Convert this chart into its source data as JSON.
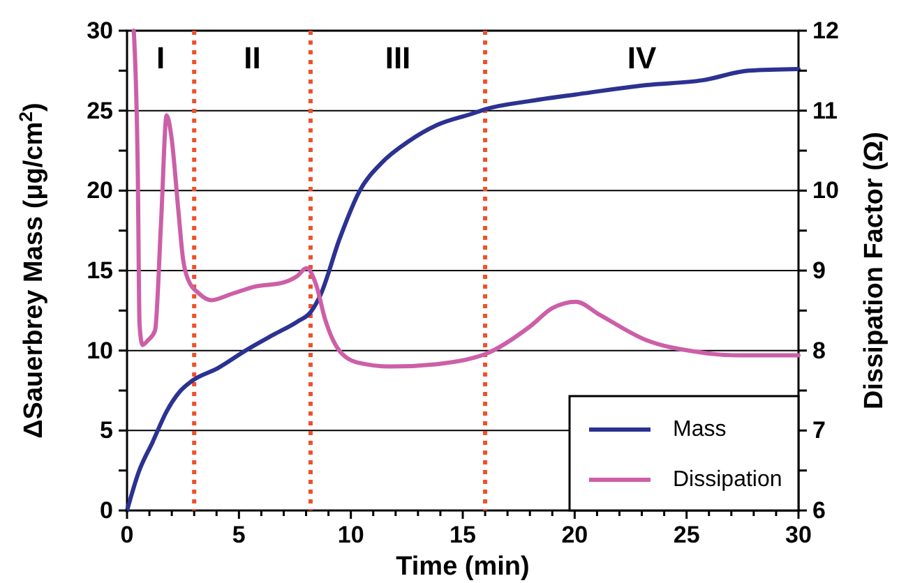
{
  "chart_data": {
    "type": "line",
    "xlabel": "Time (min)",
    "ylabel": "ΔSauerbrey Mass (μg/cm$^{2}$)",
    "y2label": "Dissipation Factor (Ω)",
    "xlim": [
      0,
      30
    ],
    "xticks": [
      0,
      {
        "value": 1,
        "label": null
      },
      {
        "value": 2,
        "label": null
      },
      {
        "value": 3,
        "label": null
      },
      {
        "value": 4,
        "label": null
      },
      5,
      {
        "value": 6,
        "label": null
      },
      {
        "value": 7,
        "label": null
      },
      {
        "value": 8,
        "label": null
      },
      {
        "value": 9,
        "label": null
      },
      10,
      {
        "value": 11,
        "label": null
      },
      {
        "value": 12,
        "label": null
      },
      {
        "value": 13,
        "label": null
      },
      {
        "value": 14,
        "label": null
      },
      15,
      {
        "value": 16,
        "label": null
      },
      {
        "value": 17,
        "label": null
      },
      {
        "value": 18,
        "label": null
      },
      {
        "value": 19,
        "label": null
      },
      20,
      {
        "value": 21,
        "label": null
      },
      {
        "value": 22,
        "label": null
      },
      {
        "value": 23,
        "label": null
      },
      {
        "value": 24,
        "label": null
      },
      25,
      {
        "value": 26,
        "label": null
      },
      {
        "value": 27,
        "label": null
      },
      {
        "value": 28,
        "label": null
      },
      {
        "value": 29,
        "label": null
      },
      30
    ],
    "ylim": [
      0,
      30
    ],
    "yticks": [
      0,
      {
        "value": 2.5,
        "label": null
      },
      5,
      {
        "value": 7.5,
        "label": null
      },
      10,
      {
        "value": 12.5,
        "label": null
      },
      15,
      {
        "value": 17.5,
        "label": null
      },
      20,
      {
        "value": 22.5,
        "label": null
      },
      25,
      {
        "value": 27.5,
        "label": null
      },
      30
    ],
    "y2lim": [
      6,
      12
    ],
    "y2ticks": [
      6,
      {
        "value": 6.5,
        "label": null
      },
      7,
      {
        "value": 7.5,
        "label": null
      },
      8,
      {
        "value": 8.5,
        "label": null
      },
      9,
      {
        "value": 9.5,
        "label": null
      },
      10,
      {
        "value": 10.5,
        "label": null
      },
      11,
      {
        "value": 11.5,
        "label": null
      },
      12
    ],
    "grid": "y",
    "legend": "bottom right",
    "marker": "none",
    "line_style": "solid",
    "series": [
      {
        "name": "Mass",
        "color": "#2b3291",
        "x": [
          0,
          0.52,
          1.15,
          1.77,
          2.4,
          2.9,
          4.06,
          5.3,
          6.56,
          7.6,
          8.2,
          8.65,
          9.5,
          10.4,
          11.35,
          12.6,
          13.85,
          15.4,
          16.04,
          18,
          20,
          23.2,
          25.7,
          27.8,
          30
        ],
        "values": [
          0,
          2.4,
          4.3,
          6.2,
          7.5,
          8.1,
          8.9,
          10,
          11,
          11.8,
          12.4,
          13.5,
          17,
          20,
          21.7,
          23.1,
          24.1,
          24.8,
          25.1,
          25.6,
          26,
          26.6,
          26.9,
          27.5,
          27.6
        ]
      },
      {
        "name": "Dissipation",
        "color": "#cc5fa8",
        "axis": "y2",
        "x": [
          0.3,
          0.48,
          0.56,
          0.69,
          0.94,
          1.25,
          1.52,
          1.77,
          1.98,
          2.3,
          2.5,
          2.71,
          3.23,
          3.75,
          4.69,
          5.73,
          6.98,
          7.6,
          8.02,
          8.44,
          8.85,
          9.48,
          10.3,
          11.77,
          13.85,
          15.5,
          16.04,
          18,
          19,
          20.06,
          21.1,
          23.2,
          25.3,
          27.35,
          30
        ],
        "values": [
          12,
          10.24,
          8.32,
          8.07,
          8.13,
          8.25,
          9.6,
          10.94,
          10.68,
          9.73,
          9.15,
          8.9,
          8.71,
          8.63,
          8.71,
          8.8,
          8.85,
          8.93,
          9.03,
          8.83,
          8.39,
          8,
          7.85,
          7.8,
          7.83,
          7.91,
          7.96,
          8.3,
          8.53,
          8.61,
          8.45,
          8.13,
          7.99,
          7.94,
          7.94
        ]
      }
    ],
    "ref_lines": [
      {
        "axis": "x",
        "value": 3,
        "color": "#f0502a",
        "line_style": "dotted"
      },
      {
        "axis": "x",
        "value": 8.2,
        "color": "#f0502a",
        "line_style": "dotted"
      },
      {
        "axis": "x",
        "value": 16,
        "color": "#f0502a",
        "line_style": "dotted"
      }
    ],
    "annotations": [
      "I",
      "II",
      "III",
      "IV"
    ]
  }
}
